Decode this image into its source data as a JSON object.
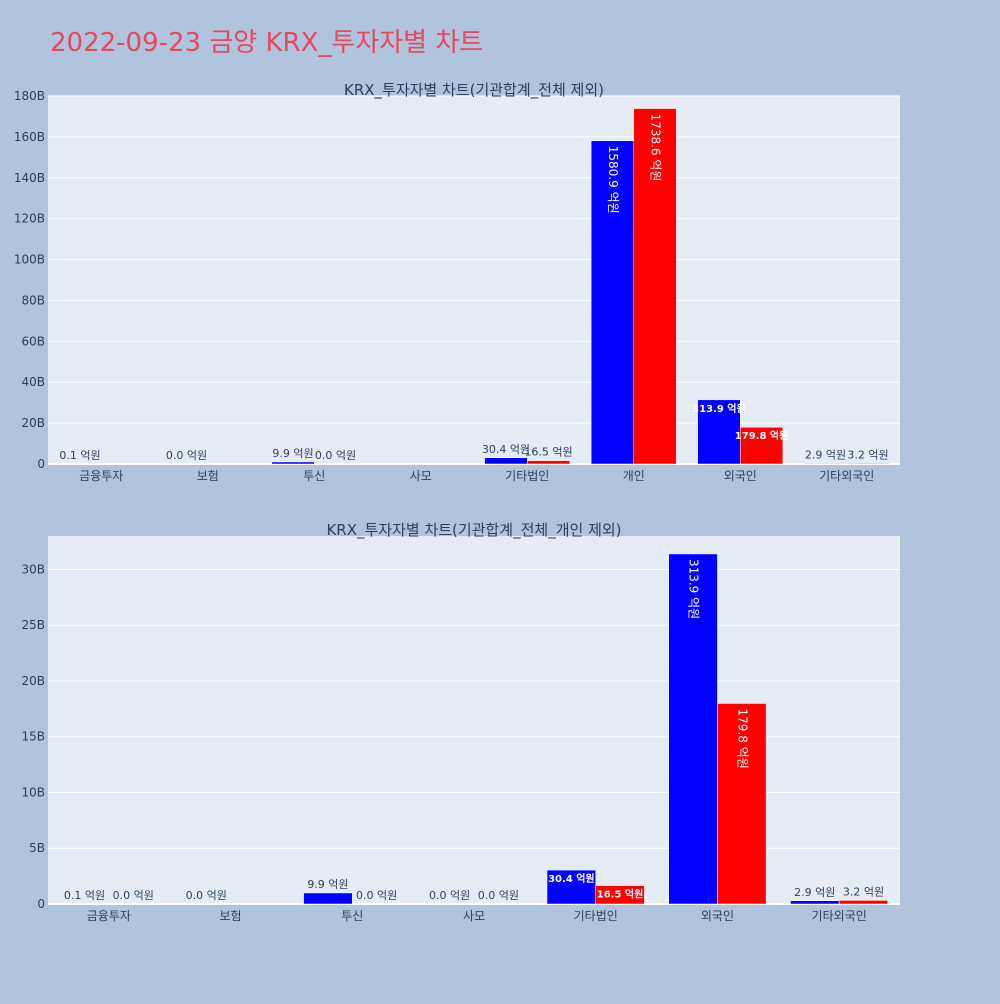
{
  "page": {
    "title": "2022-09-23 금양 KRX_투자자별 차트"
  },
  "colors": {
    "buy": "#0000ff",
    "sell": "#ff0000",
    "plot_bg": "#e5ecf6",
    "paper_bg": "#b0c4de",
    "title": "#e8485d",
    "axis_text": "#2a3f5f"
  },
  "chart_data": [
    {
      "type": "bar",
      "title": "KRX_투자자별 차트(기관합계_전체 제외)",
      "categories": [
        "금융투자",
        "보험",
        "투신",
        "사모",
        "기타법인",
        "개인",
        "외국인",
        "기타외국인"
      ],
      "series": [
        {
          "values": [
            0.01,
            0.0,
            0.99,
            0.0,
            3.04,
            158.09,
            31.39,
            0.29
          ],
          "labels": [
            "0.1 억원",
            "0.0 억원",
            "9.9 억원",
            "",
            "30.4 억원",
            "1580.9 억원",
            "313.9 억원",
            "2.9 억원"
          ]
        },
        {
          "values": [
            0.0,
            0.0,
            0.0,
            0.0,
            1.65,
            173.86,
            17.98,
            0.32
          ],
          "labels": [
            "",
            "",
            "0.0 억원",
            "",
            "16.5 억원",
            "1738.6 억원",
            "179.8 억원",
            "3.2 억원"
          ]
        }
      ],
      "ylim": [
        0,
        180
      ],
      "yticks": [
        0,
        20,
        40,
        60,
        80,
        100,
        120,
        140,
        160,
        180
      ],
      "ytick_labels": [
        "0",
        "20B",
        "40B",
        "60B",
        "80B",
        "100B",
        "120B",
        "140B",
        "160B",
        "180B"
      ],
      "grid": true
    },
    {
      "type": "bar",
      "title": "KRX_투자자별 차트(기관합계_전체_개인 제외)",
      "categories": [
        "금융투자",
        "보험",
        "투신",
        "사모",
        "기타법인",
        "외국인",
        "기타외국인"
      ],
      "series": [
        {
          "values": [
            0.01,
            0.0,
            0.99,
            0.0,
            3.04,
            31.39,
            0.29
          ],
          "labels": [
            "0.1 억원",
            "0.0 억원",
            "9.9 억원",
            "0.0 억원",
            "30.4 억원",
            "313.9 억원",
            "2.9 억원"
          ]
        },
        {
          "values": [
            0.0,
            0.0,
            0.0,
            0.0,
            1.65,
            17.98,
            0.32
          ],
          "labels": [
            "0.0 억원",
            "",
            "0.0 억원",
            "0.0 억원",
            "16.5 억원",
            "179.8 억원",
            "3.2 억원"
          ]
        }
      ],
      "ylim": [
        0,
        33
      ],
      "yticks": [
        0,
        5,
        10,
        15,
        20,
        25,
        30
      ],
      "ytick_labels": [
        "0",
        "5B",
        "10B",
        "15B",
        "20B",
        "25B",
        "30B"
      ],
      "grid": true
    }
  ]
}
